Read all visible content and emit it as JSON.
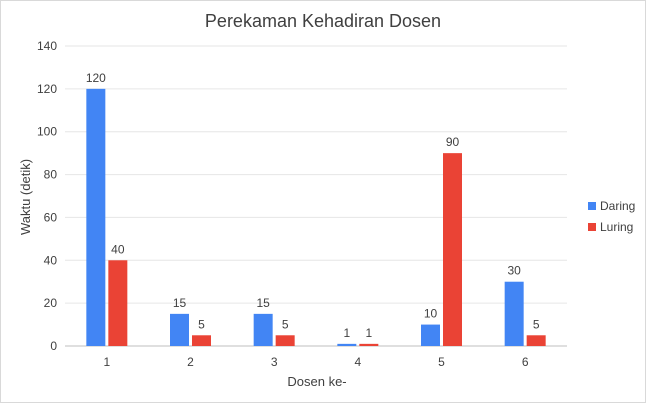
{
  "chart_data": {
    "type": "bar",
    "title": "Perekaman Kehadiran Dosen",
    "xlabel": "Dosen ke-",
    "ylabel": "Waktu (detik)",
    "ylim": [
      0,
      140
    ],
    "yticks": [
      0,
      20,
      40,
      60,
      80,
      100,
      120,
      140
    ],
    "grid": true,
    "legend_position": "right",
    "categories": [
      "1",
      "2",
      "3",
      "4",
      "5",
      "6"
    ],
    "series": [
      {
        "name": "Daring",
        "color": "#4285f4",
        "values": [
          120,
          15,
          15,
          1,
          10,
          30
        ]
      },
      {
        "name": "Luring",
        "color": "#ea4335",
        "values": [
          40,
          5,
          5,
          1,
          90,
          5
        ]
      }
    ]
  }
}
